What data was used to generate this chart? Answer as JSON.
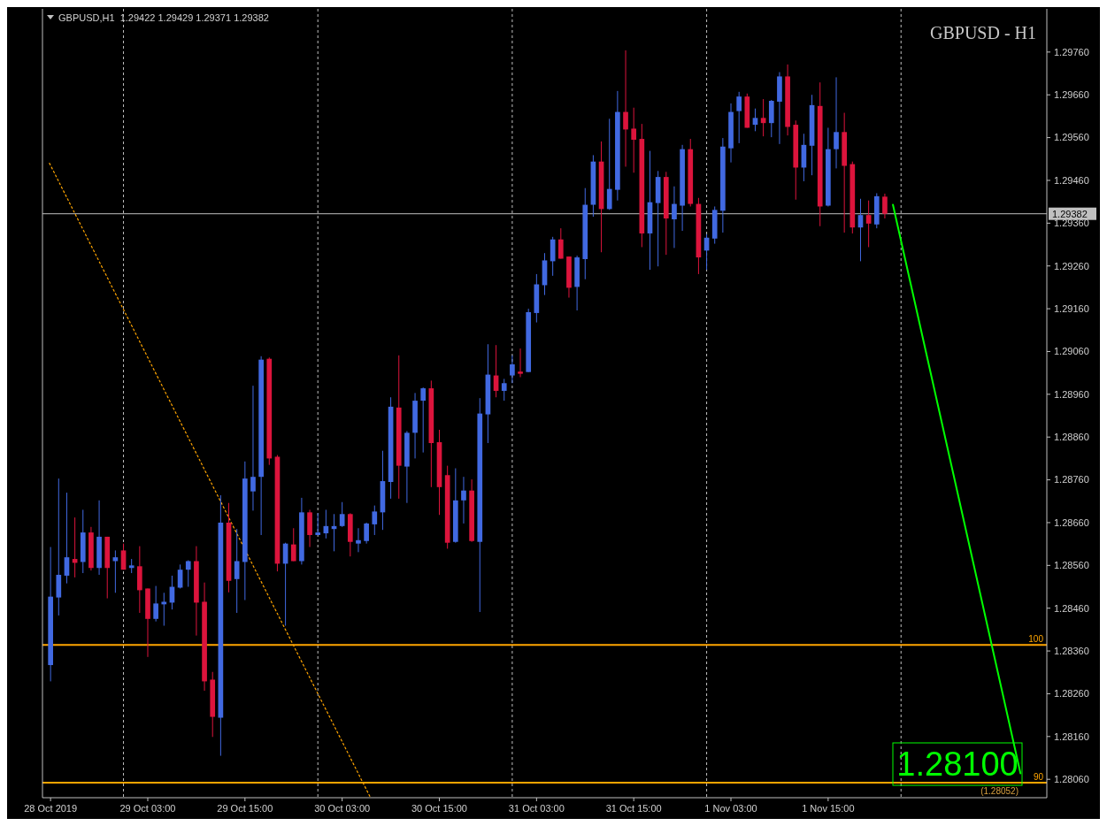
{
  "chart_data": {
    "type": "candlestick",
    "title": "GBPUSD - H1",
    "subtitle": "GBPUSD,H1  1.29422 1.29429 1.29371 1.29382",
    "x": [
      "2019-10-28T15:00",
      "2019-10-28T16:00",
      "2019-10-28T17:00",
      "2019-10-28T18:00",
      "2019-10-28T19:00",
      "2019-10-28T20:00",
      "2019-10-28T21:00",
      "2019-10-28T22:00",
      "2019-10-28T23:00",
      "2019-10-29T00:00",
      "2019-10-29T01:00",
      "2019-10-29T02:00",
      "2019-10-29T03:00",
      "2019-10-29T04:00",
      "2019-10-29T05:00",
      "2019-10-29T06:00",
      "2019-10-29T07:00",
      "2019-10-29T08:00",
      "2019-10-29T09:00",
      "2019-10-29T10:00",
      "2019-10-29T11:00",
      "2019-10-29T12:00",
      "2019-10-29T13:00",
      "2019-10-29T14:00",
      "2019-10-29T15:00",
      "2019-10-29T16:00",
      "2019-10-29T17:00",
      "2019-10-29T18:00",
      "2019-10-29T19:00",
      "2019-10-29T20:00",
      "2019-10-29T21:00",
      "2019-10-29T22:00",
      "2019-10-29T23:00",
      "2019-10-30T00:00",
      "2019-10-30T01:00",
      "2019-10-30T02:00",
      "2019-10-30T03:00",
      "2019-10-30T04:00",
      "2019-10-30T05:00",
      "2019-10-30T06:00",
      "2019-10-30T07:00",
      "2019-10-30T08:00",
      "2019-10-30T09:00",
      "2019-10-30T10:00",
      "2019-10-30T11:00",
      "2019-10-30T12:00",
      "2019-10-30T13:00",
      "2019-10-30T14:00",
      "2019-10-30T15:00",
      "2019-10-30T16:00",
      "2019-10-30T17:00",
      "2019-10-30T18:00",
      "2019-10-30T19:00",
      "2019-10-30T20:00",
      "2019-10-30T21:00",
      "2019-10-30T22:00",
      "2019-10-30T23:00",
      "2019-10-31T00:00",
      "2019-10-31T01:00",
      "2019-10-31T02:00",
      "2019-10-31T03:00",
      "2019-10-31T04:00",
      "2019-10-31T05:00",
      "2019-10-31T06:00",
      "2019-10-31T07:00",
      "2019-10-31T08:00",
      "2019-10-31T09:00",
      "2019-10-31T10:00",
      "2019-10-31T11:00",
      "2019-10-31T12:00",
      "2019-10-31T13:00",
      "2019-10-31T14:00",
      "2019-10-31T15:00",
      "2019-10-31T16:00",
      "2019-10-31T17:00",
      "2019-10-31T18:00",
      "2019-10-31T19:00",
      "2019-10-31T20:00",
      "2019-10-31T21:00",
      "2019-10-31T22:00",
      "2019-10-31T23:00",
      "2019-11-01T00:00",
      "2019-11-01T01:00",
      "2019-11-01T02:00",
      "2019-11-01T03:00",
      "2019-11-01T04:00",
      "2019-11-01T05:00",
      "2019-11-01T06:00",
      "2019-11-01T07:00",
      "2019-11-01T08:00",
      "2019-11-01T09:00",
      "2019-11-01T10:00",
      "2019-11-01T11:00",
      "2019-11-01T12:00",
      "2019-11-01T13:00",
      "2019-11-01T14:00",
      "2019-11-01T15:00",
      "2019-11-01T16:00",
      "2019-11-01T17:00",
      "2019-11-01T18:00",
      "2019-11-01T19:00",
      "2019-11-01T20:00",
      "2019-11-01T21:00",
      "2019-11-01T22:00"
    ],
    "ohlc": [
      [
        1.28327,
        1.28603,
        1.28289,
        1.28487
      ],
      [
        1.28485,
        1.28763,
        1.28443,
        1.28538
      ],
      [
        1.28536,
        1.2873,
        1.28518,
        1.28579
      ],
      [
        1.28575,
        1.28672,
        1.28532,
        1.28566
      ],
      [
        1.28568,
        1.2869,
        1.28542,
        1.28637
      ],
      [
        1.28637,
        1.2865,
        1.28548,
        1.28554
      ],
      [
        1.28554,
        1.28712,
        1.28538,
        1.28627
      ],
      [
        1.28627,
        1.28627,
        1.28483,
        1.28554
      ],
      [
        1.2857,
        1.28595,
        1.28496,
        1.28579
      ],
      [
        1.28595,
        1.28611,
        1.2855,
        1.2855
      ],
      [
        1.28554,
        1.28575,
        1.28542,
        1.2856
      ],
      [
        1.28558,
        1.28605,
        1.28449,
        1.28502
      ],
      [
        1.28506,
        1.28506,
        1.28346,
        1.28435
      ],
      [
        1.28435,
        1.28512,
        1.28429,
        1.28471
      ],
      [
        1.28469,
        1.28496,
        1.28419,
        1.28475
      ],
      [
        1.28473,
        1.28536,
        1.28457,
        1.2851
      ],
      [
        1.28508,
        1.28562,
        1.28506,
        1.2855
      ],
      [
        1.2855,
        1.28572,
        1.2851,
        1.2857
      ],
      [
        1.2857,
        1.28605,
        1.28396,
        1.28473
      ],
      [
        1.28475,
        1.2852,
        1.28267,
        1.28289
      ],
      [
        1.28293,
        1.28311,
        1.28159,
        1.28206
      ],
      [
        1.28204,
        1.28724,
        1.28115,
        1.2866
      ],
      [
        1.2866,
        1.28706,
        1.28497,
        1.28524
      ],
      [
        1.28528,
        1.28645,
        1.28449,
        1.2857
      ],
      [
        1.28568,
        1.28803,
        1.28479,
        1.28763
      ],
      [
        1.28733,
        1.2898,
        1.28688,
        1.28767
      ],
      [
        1.28767,
        1.29049,
        1.28631,
        1.29041
      ],
      [
        1.29043,
        1.29046,
        1.28795,
        1.2881
      ],
      [
        1.28814,
        1.28818,
        1.28546,
        1.28564
      ],
      [
        1.28564,
        1.28613,
        1.28419,
        1.28611
      ],
      [
        1.28609,
        1.28647,
        1.2857,
        1.2857
      ],
      [
        1.2857,
        1.28718,
        1.28562,
        1.28684
      ],
      [
        1.28684,
        1.2869,
        1.28603,
        1.28631
      ],
      [
        1.28631,
        1.28682,
        1.28631,
        1.28637
      ],
      [
        1.28635,
        1.2869,
        1.28623,
        1.28652
      ],
      [
        1.28645,
        1.2868,
        1.28593,
        1.28652
      ],
      [
        1.28652,
        1.28708,
        1.2865,
        1.2868
      ],
      [
        1.2868,
        1.28682,
        1.28581,
        1.28615
      ],
      [
        1.28611,
        1.28647,
        1.28591,
        1.28619
      ],
      [
        1.28617,
        1.2866,
        1.28611,
        1.28658
      ],
      [
        1.28656,
        1.287,
        1.28631,
        1.28686
      ],
      [
        1.28684,
        1.28828,
        1.28643,
        1.28757
      ],
      [
        1.28755,
        1.28953,
        1.28716,
        1.28931
      ],
      [
        1.28929,
        1.29051,
        1.28716,
        1.28793
      ],
      [
        1.28791,
        1.28874,
        1.28706,
        1.2887
      ],
      [
        1.2887,
        1.28963,
        1.2881,
        1.28945
      ],
      [
        1.28945,
        1.28976,
        1.28824,
        1.28974
      ],
      [
        1.28974,
        1.28992,
        1.28743,
        1.28846
      ],
      [
        1.28848,
        1.28877,
        1.28678,
        1.28743
      ],
      [
        1.28771,
        1.28793,
        1.28599,
        1.28613
      ],
      [
        1.28615,
        1.28787,
        1.28613,
        1.28712
      ],
      [
        1.28712,
        1.28767,
        1.28658,
        1.28735
      ],
      [
        1.28735,
        1.28761,
        1.28615,
        1.28617
      ],
      [
        1.28615,
        1.28951,
        1.28451,
        1.28915
      ],
      [
        1.28913,
        1.29077,
        1.28846,
        1.29006
      ],
      [
        1.29004,
        1.29075,
        1.28953,
        1.28968
      ],
      [
        1.28968,
        1.28996,
        1.28945,
        1.28986
      ],
      [
        1.29004,
        1.29051,
        1.28986,
        1.2903
      ],
      [
        1.29013,
        1.29067,
        1.29,
        1.29008
      ],
      [
        1.29012,
        1.2916,
        1.29012,
        1.29152
      ],
      [
        1.2915,
        1.29241,
        1.29128,
        1.29217
      ],
      [
        1.29215,
        1.2929,
        1.29192,
        1.29273
      ],
      [
        1.29271,
        1.29328,
        1.29237,
        1.29322
      ],
      [
        1.29322,
        1.29348,
        1.29277,
        1.29277
      ],
      [
        1.29282,
        1.29282,
        1.29186,
        1.29209
      ],
      [
        1.29211,
        1.29284,
        1.29156,
        1.2928
      ],
      [
        1.29276,
        1.29442,
        1.29229,
        1.29403
      ],
      [
        1.29403,
        1.29519,
        1.29375,
        1.29504
      ],
      [
        1.29504,
        1.29551,
        1.29292,
        1.29393
      ],
      [
        1.29393,
        1.29604,
        1.29391,
        1.2944
      ],
      [
        1.29438,
        1.29669,
        1.29413,
        1.2962
      ],
      [
        1.2962,
        1.29764,
        1.29492,
        1.29579
      ],
      [
        1.29581,
        1.2963,
        1.29478,
        1.29555
      ],
      [
        1.29557,
        1.29592,
        1.29304,
        1.29336
      ],
      [
        1.29336,
        1.29529,
        1.29251,
        1.29409
      ],
      [
        1.29407,
        1.29482,
        1.29259,
        1.29468
      ],
      [
        1.29468,
        1.2948,
        1.29286,
        1.29371
      ],
      [
        1.29369,
        1.29446,
        1.29302,
        1.29405
      ],
      [
        1.29401,
        1.29543,
        1.29342,
        1.29533
      ],
      [
        1.29533,
        1.29557,
        1.29399,
        1.29405
      ],
      [
        1.29405,
        1.29419,
        1.29241,
        1.2928
      ],
      [
        1.29296,
        1.29334,
        1.29251,
        1.29326
      ],
      [
        1.29324,
        1.29399,
        1.29312,
        1.29391
      ],
      [
        1.29389,
        1.29559,
        1.29338,
        1.29539
      ],
      [
        1.29535,
        1.2964,
        1.29502,
        1.2962
      ],
      [
        1.29622,
        1.29667,
        1.29547,
        1.29656
      ],
      [
        1.29656,
        1.29663,
        1.29583,
        1.29583
      ],
      [
        1.2959,
        1.29628,
        1.29575,
        1.29606
      ],
      [
        1.29606,
        1.2965,
        1.29563,
        1.29594
      ],
      [
        1.29594,
        1.29648,
        1.29561,
        1.29646
      ],
      [
        1.29644,
        1.29713,
        1.29545,
        1.29703
      ],
      [
        1.29703,
        1.29731,
        1.29565,
        1.29585
      ],
      [
        1.2959,
        1.296,
        1.29415,
        1.2949
      ],
      [
        1.2949,
        1.29569,
        1.29458,
        1.29543
      ],
      [
        1.29541,
        1.2966,
        1.29472,
        1.29636
      ],
      [
        1.29634,
        1.29689,
        1.29353,
        1.29399
      ],
      [
        1.29401,
        1.29583,
        1.29399,
        1.29533
      ],
      [
        1.29533,
        1.29701,
        1.29488,
        1.29573
      ],
      [
        1.29573,
        1.29618,
        1.29338,
        1.29494
      ],
      [
        1.29498,
        1.29504,
        1.29336,
        1.2935
      ],
      [
        1.2935,
        1.29417,
        1.29271,
        1.29379
      ],
      [
        1.29379,
        1.29413,
        1.29304,
        1.29359
      ],
      [
        1.29357,
        1.2943,
        1.29348,
        1.29423
      ],
      [
        1.29422,
        1.29429,
        1.29371,
        1.29382
      ]
    ],
    "colors": [
      "#4169e1",
      "#4169e1",
      "#4169e1",
      "#dc143c",
      "#4169e1",
      "#dc143c",
      "#4169e1",
      "#dc143c",
      "#4169e1",
      "#dc143c",
      "#4169e1",
      "#dc143c",
      "#dc143c",
      "#4169e1",
      "#4169e1",
      "#4169e1",
      "#4169e1",
      "#4169e1",
      "#dc143c",
      "#dc143c",
      "#dc143c",
      "#4169e1",
      "#dc143c",
      "#4169e1",
      "#4169e1",
      "#4169e1",
      "#4169e1",
      "#dc143c",
      "#dc143c",
      "#4169e1",
      "#dc143c",
      "#4169e1",
      "#dc143c",
      "#4169e1",
      "#4169e1",
      "#4169e1",
      "#4169e1",
      "#dc143c",
      "#4169e1",
      "#4169e1",
      "#4169e1",
      "#4169e1",
      "#4169e1",
      "#dc143c",
      "#4169e1",
      "#4169e1",
      "#4169e1",
      "#dc143c",
      "#dc143c",
      "#dc143c",
      "#4169e1",
      "#4169e1",
      "#dc143c",
      "#4169e1",
      "#4169e1",
      "#dc143c",
      "#4169e1",
      "#4169e1",
      "#dc143c",
      "#4169e1",
      "#4169e1",
      "#4169e1",
      "#4169e1",
      "#dc143c",
      "#dc143c",
      "#4169e1",
      "#4169e1",
      "#4169e1",
      "#dc143c",
      "#4169e1",
      "#4169e1",
      "#dc143c",
      "#dc143c",
      "#dc143c",
      "#4169e1",
      "#4169e1",
      "#dc143c",
      "#4169e1",
      "#4169e1",
      "#dc143c",
      "#dc143c",
      "#4169e1",
      "#4169e1",
      "#4169e1",
      "#4169e1",
      "#4169e1",
      "#dc143c",
      "#4169e1",
      "#dc143c",
      "#4169e1",
      "#4169e1",
      "#dc143c",
      "#dc143c",
      "#4169e1",
      "#4169e1",
      "#dc143c",
      "#4169e1",
      "#4169e1",
      "#dc143c",
      "#dc143c",
      "#4169e1",
      "#dc143c",
      "#4169e1",
      "#dc143c"
    ],
    "series": [
      {
        "type": "line",
        "color": "#00ff00",
        "line_style": "solid",
        "x": [
          "2019-11-01T23:00",
          "2019-11-02T14:45"
        ],
        "values": [
          1.29403,
          1.28074
        ]
      },
      {
        "type": "line",
        "color": "#ffa500",
        "line_style": "dotted",
        "x": [
          "2019-10-28T14:52",
          "2019-10-30T06:30"
        ],
        "values": [
          1.295,
          1.28017
        ]
      }
    ],
    "ref_lines": [
      {
        "axis": "x",
        "value": "2019-10-29T00:00",
        "color": "#c0c0c0",
        "line_style": "dashed"
      },
      {
        "axis": "x",
        "value": "2019-10-30T00:00",
        "color": "#c0c0c0",
        "line_style": "dashed"
      },
      {
        "axis": "x",
        "value": "2019-10-31T00:00",
        "color": "#c0c0c0",
        "line_style": "dashed"
      },
      {
        "axis": "x",
        "value": "2019-11-01T00:00",
        "color": "#c0c0c0",
        "line_style": "dashed"
      },
      {
        "axis": "x",
        "value": "2019-11-02T00:00",
        "color": "#c0c0c0",
        "line_style": "dashed"
      },
      {
        "axis": "y",
        "value": 1.29382,
        "label": "1.29382",
        "color": "#c0c0c0",
        "line_style": "solid"
      },
      {
        "axis": "y",
        "value": 1.28374,
        "color": "#ffa500",
        "line_style": "solid"
      },
      {
        "axis": "y",
        "value": 1.28052,
        "color": "#ffa500",
        "line_style": "solid"
      }
    ],
    "annotations": [
      "1.28100",
      "(1.28052)",
      {
        "text": "100",
        "y": 1.28374
      },
      {
        "text": "90",
        "y": 1.28052
      }
    ],
    "xlim": [
      "2019-10-28T14:00",
      "2019-11-02T18:00"
    ],
    "xticks": [
      {
        "value": "2019-10-28T15:00",
        "label": "28 Oct 2019"
      },
      {
        "value": "2019-10-29T03:00",
        "label": "29 Oct 03:00"
      },
      {
        "value": "2019-10-29T15:00",
        "label": "29 Oct 15:00"
      },
      {
        "value": "2019-10-30T03:00",
        "label": "30 Oct 03:00"
      },
      {
        "value": "2019-10-30T15:00",
        "label": "30 Oct 15:00"
      },
      {
        "value": "2019-10-31T03:00",
        "label": "31 Oct 03:00"
      },
      {
        "value": "2019-10-31T15:00",
        "label": "31 Oct 15:00"
      },
      {
        "value": "2019-11-01T03:00",
        "label": "1 Nov 03:00"
      },
      {
        "value": "2019-11-01T15:00",
        "label": "1 Nov 15:00"
      }
    ],
    "ylim": [
      1.28017,
      1.29861
    ],
    "yticks": [
      {
        "value": 1.2806,
        "label": "1.28060"
      },
      {
        "value": 1.2816,
        "label": "1.28160"
      },
      {
        "value": 1.2826,
        "label": "1.28260"
      },
      {
        "value": 1.2836,
        "label": "1.28360"
      },
      {
        "value": 1.2846,
        "label": "1.28460"
      },
      {
        "value": 1.2856,
        "label": "1.28560"
      },
      {
        "value": 1.2866,
        "label": "1.28660"
      },
      {
        "value": 1.2876,
        "label": "1.28760"
      },
      {
        "value": 1.2886,
        "label": "1.28860"
      },
      {
        "value": 1.2896,
        "label": "1.28960"
      },
      {
        "value": 1.2906,
        "label": "1.29060"
      },
      {
        "value": 1.2916,
        "label": "1.29160"
      },
      {
        "value": 1.2926,
        "label": "1.29260"
      },
      {
        "value": 1.2936,
        "label": "1.29360"
      },
      {
        "value": 1.2946,
        "label": "1.29460"
      },
      {
        "value": 1.2956,
        "label": "1.29560"
      },
      {
        "value": 1.2966,
        "label": "1.29660"
      },
      {
        "value": 1.2976,
        "label": "1.29760"
      }
    ],
    "grid": false
  }
}
